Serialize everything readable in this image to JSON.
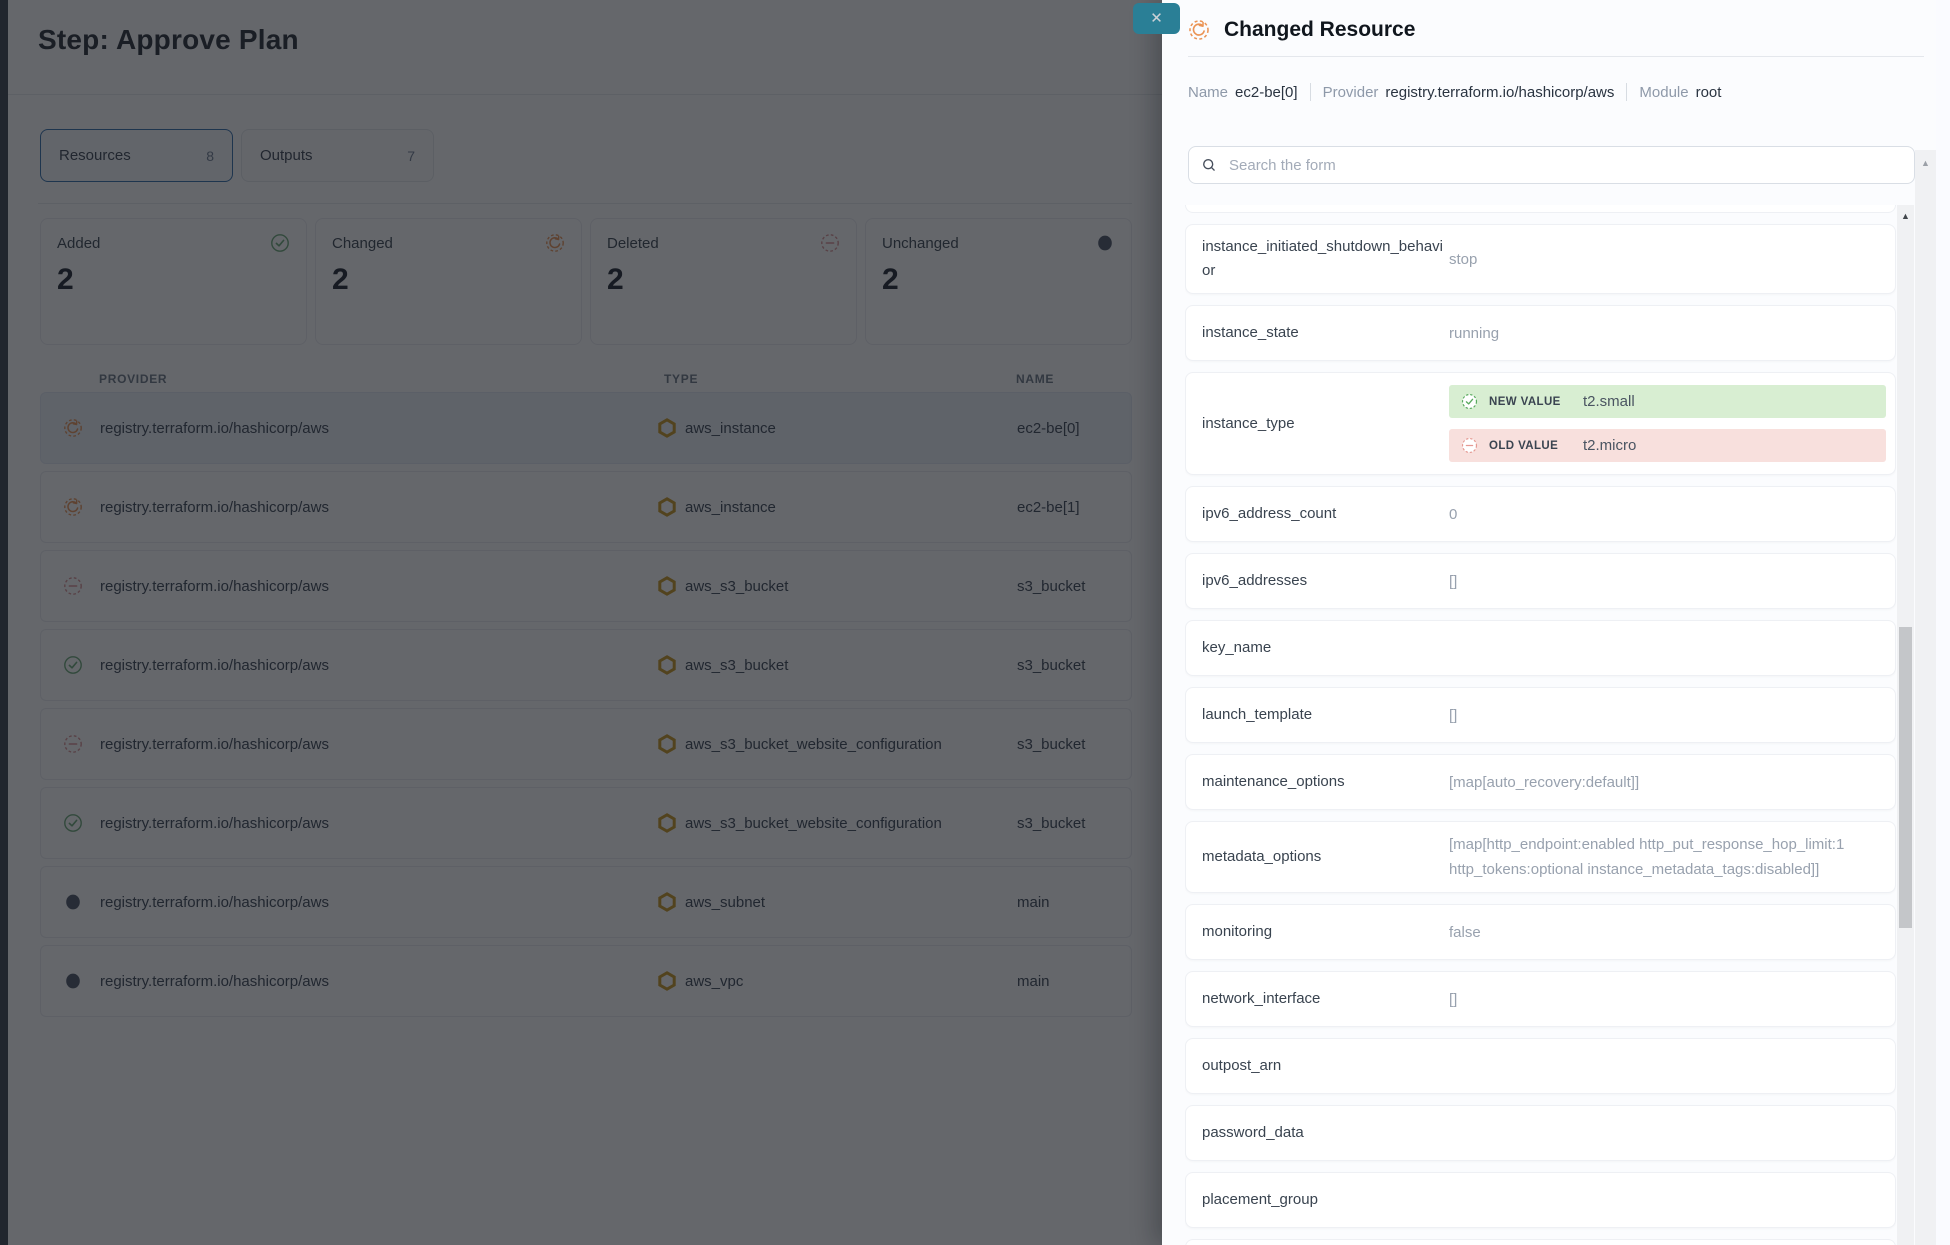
{
  "left_panel": {
    "title": "Step: Approve Plan",
    "tabs": [
      {
        "label": "Resources",
        "count": "8",
        "selected": true
      },
      {
        "label": "Outputs",
        "count": "7",
        "selected": false
      }
    ],
    "summary_cards": [
      {
        "label": "Added",
        "value": "2",
        "icon": "added-icon"
      },
      {
        "label": "Changed",
        "value": "2",
        "icon": "changed-icon"
      },
      {
        "label": "Deleted",
        "value": "2",
        "icon": "deleted-icon"
      },
      {
        "label": "Unchanged",
        "value": "2",
        "icon": "unchanged-icon"
      }
    ],
    "table": {
      "columns": [
        "PROVIDER",
        "TYPE",
        "NAME"
      ],
      "rows": [
        {
          "status": "changed",
          "provider": "registry.terraform.io/hashicorp/aws",
          "type": "aws_instance",
          "name": "ec2-be[0]",
          "selected": true
        },
        {
          "status": "changed",
          "provider": "registry.terraform.io/hashicorp/aws",
          "type": "aws_instance",
          "name": "ec2-be[1]",
          "selected": false
        },
        {
          "status": "deleted",
          "provider": "registry.terraform.io/hashicorp/aws",
          "type": "aws_s3_bucket",
          "name": "s3_bucket",
          "selected": false
        },
        {
          "status": "added",
          "provider": "registry.terraform.io/hashicorp/aws",
          "type": "aws_s3_bucket",
          "name": "s3_bucket",
          "selected": false
        },
        {
          "status": "deleted",
          "provider": "registry.terraform.io/hashicorp/aws",
          "type": "aws_s3_bucket_website_configuration",
          "name": "s3_bucket",
          "selected": false
        },
        {
          "status": "added",
          "provider": "registry.terraform.io/hashicorp/aws",
          "type": "aws_s3_bucket_website_configuration",
          "name": "s3_bucket",
          "selected": false
        },
        {
          "status": "unchanged",
          "provider": "registry.terraform.io/hashicorp/aws",
          "type": "aws_subnet",
          "name": "main",
          "selected": false
        },
        {
          "status": "unchanged",
          "provider": "registry.terraform.io/hashicorp/aws",
          "type": "aws_vpc",
          "name": "main",
          "selected": false
        }
      ]
    }
  },
  "drawer": {
    "title": "Changed Resource",
    "title_icon": "changed-icon",
    "close_icon": "✕",
    "meta": [
      {
        "label": "Name",
        "value": "ec2-be[0]"
      },
      {
        "label": "Provider",
        "value": "registry.terraform.io/hashicorp/aws"
      },
      {
        "label": "Module",
        "value": "root"
      }
    ],
    "search_placeholder": "Search the form",
    "diff_labels": {
      "new": "NEW VALUE",
      "old": "OLD VALUE"
    },
    "scroll_arrow": "▲",
    "attributes": [
      {
        "key": "instance_initiated_shutdown_behavior",
        "value": "stop"
      },
      {
        "key": "instance_state",
        "value": "running"
      },
      {
        "key": "instance_type",
        "diff": {
          "new": "t2.small",
          "old": "t2.micro"
        }
      },
      {
        "key": "ipv6_address_count",
        "value": "0"
      },
      {
        "key": "ipv6_addresses",
        "value": "[]"
      },
      {
        "key": "key_name",
        "value": ""
      },
      {
        "key": "launch_template",
        "value": "[]"
      },
      {
        "key": "maintenance_options",
        "value": "[map[auto_recovery:default]]"
      },
      {
        "key": "metadata_options",
        "value": "[map[http_endpoint:enabled http_put_response_hop_limit:1 http_tokens:optional instance_metadata_tags:disabled]]"
      },
      {
        "key": "monitoring",
        "value": "false"
      },
      {
        "key": "network_interface",
        "value": "[]"
      },
      {
        "key": "outpost_arn",
        "value": ""
      },
      {
        "key": "password_data",
        "value": ""
      },
      {
        "key": "placement_group",
        "value": ""
      }
    ]
  },
  "colors": {
    "close_button": "#2a7f96",
    "added": "#69a876",
    "changed": "#eb9455",
    "deleted": "#d98f93",
    "unchanged": "#4b5463",
    "aws_icon": "#c8961e",
    "diff_new_bg": "#d8eed2",
    "diff_old_bg": "#f8e0dd",
    "diff_new_icon": "#5aa95f",
    "diff_old_icon": "#e59a93",
    "tab_selected_border": "#2f6cab"
  }
}
